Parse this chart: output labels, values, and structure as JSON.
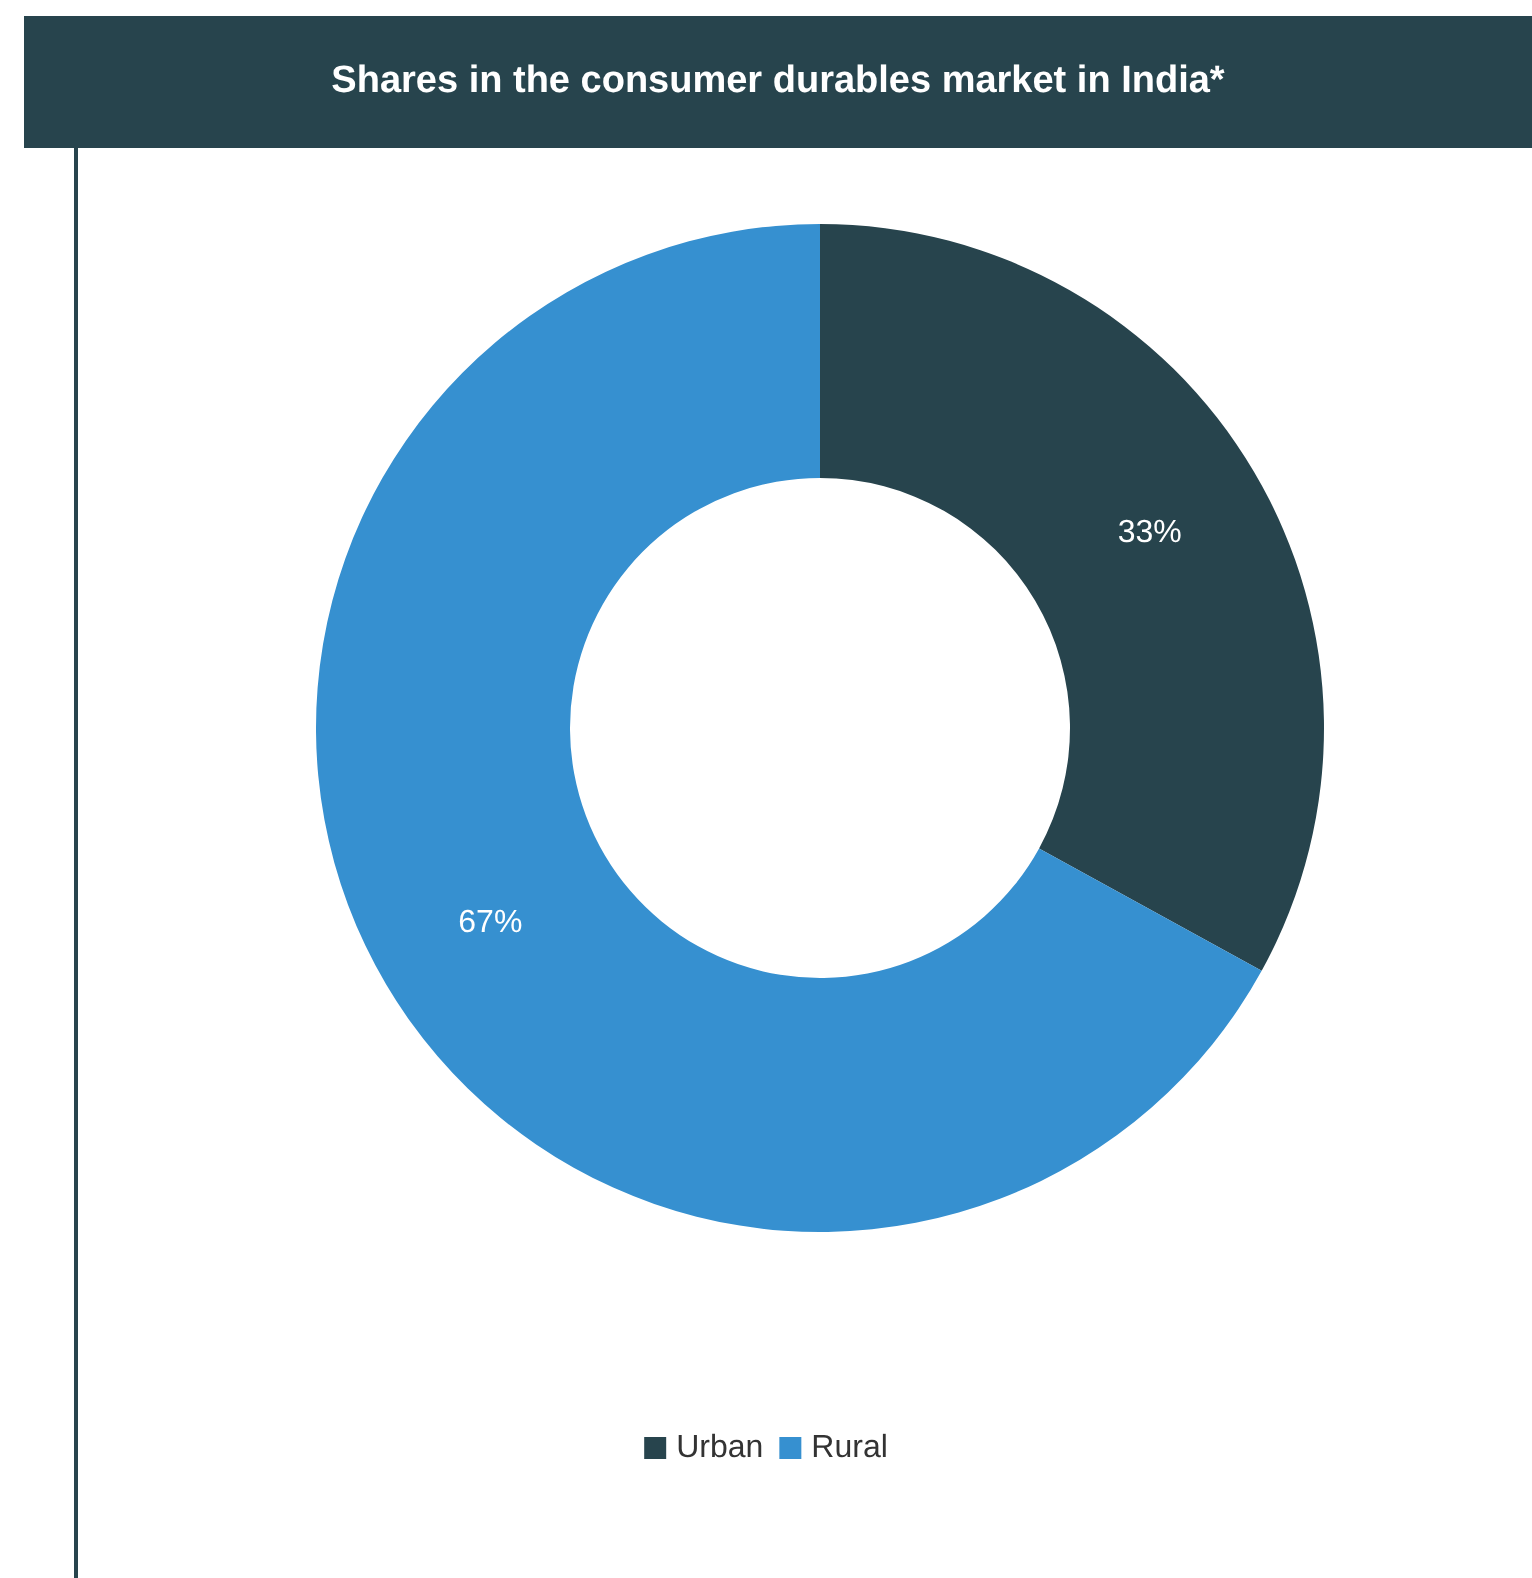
{
  "chart_data": {
    "type": "donut",
    "title": "Shares in the consumer durables market in India*",
    "categories": [
      "Urban",
      "Rural"
    ],
    "values": [
      33,
      67
    ],
    "colors": [
      "#27444d",
      "#3690d0"
    ],
    "value_labels": [
      "33%",
      "67%"
    ],
    "legend": "bottom"
  }
}
